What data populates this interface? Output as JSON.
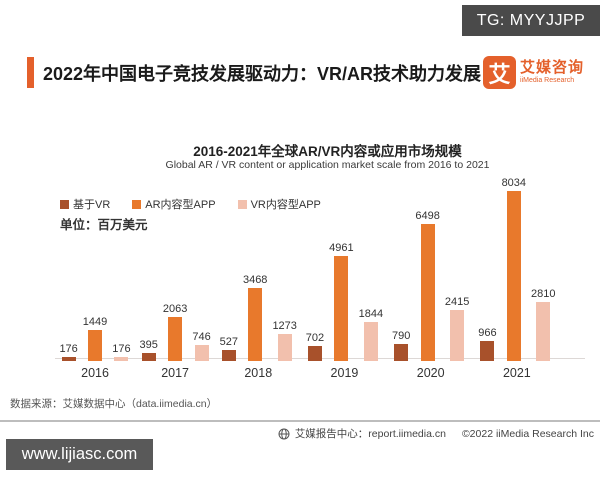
{
  "colors": {
    "accent_orange": "#e4602b",
    "series_dark": "#a8512b",
    "series_orange": "#e8792c",
    "series_pink": "#f2c0ad",
    "tg_box_bg": "#4a4a4a",
    "watermark_bg": "#595959"
  },
  "overlay": {
    "tg_label": "TG: MYYJJPP",
    "watermark": "www.lijiasc.com"
  },
  "header": {
    "title": "2022年中国电子竞技发展驱动力：VR/AR技术助力发展",
    "logo_glyph": "艾",
    "logo_name_cn": "艾媒咨询",
    "logo_name_en": "iiMedia Research"
  },
  "chart_data": {
    "type": "bar",
    "title": "2016-2021年全球AR/VR内容或应用市场规模",
    "subtitle": "Global AR / VR content or application market scale from 2016 to 2021",
    "unit_label": "单位：百万美元",
    "categories": [
      "2016",
      "2017",
      "2018",
      "2019",
      "2020",
      "2021"
    ],
    "series": [
      {
        "name": "基于VR",
        "color": "#a8512b",
        "values": [
          176,
          395,
          527,
          702,
          790,
          966
        ]
      },
      {
        "name": "AR内容型APP",
        "color": "#e8792c",
        "values": [
          1449,
          2063,
          3468,
          4961,
          6498,
          8034
        ]
      },
      {
        "name": "VR内容型APP",
        "color": "#f2c0ad",
        "values": [
          176,
          746,
          1273,
          1844,
          2415,
          2810
        ]
      }
    ],
    "ylim": [
      0,
      8034
    ],
    "grid": false,
    "legend_position": "top-left",
    "value_labels": true
  },
  "footer": {
    "source": "数据来源：艾媒数据中心（data.iimedia.cn）",
    "report_center": "艾媒报告中心：report.iimedia.cn",
    "copyright": "©2022  iiMedia Research  Inc"
  }
}
